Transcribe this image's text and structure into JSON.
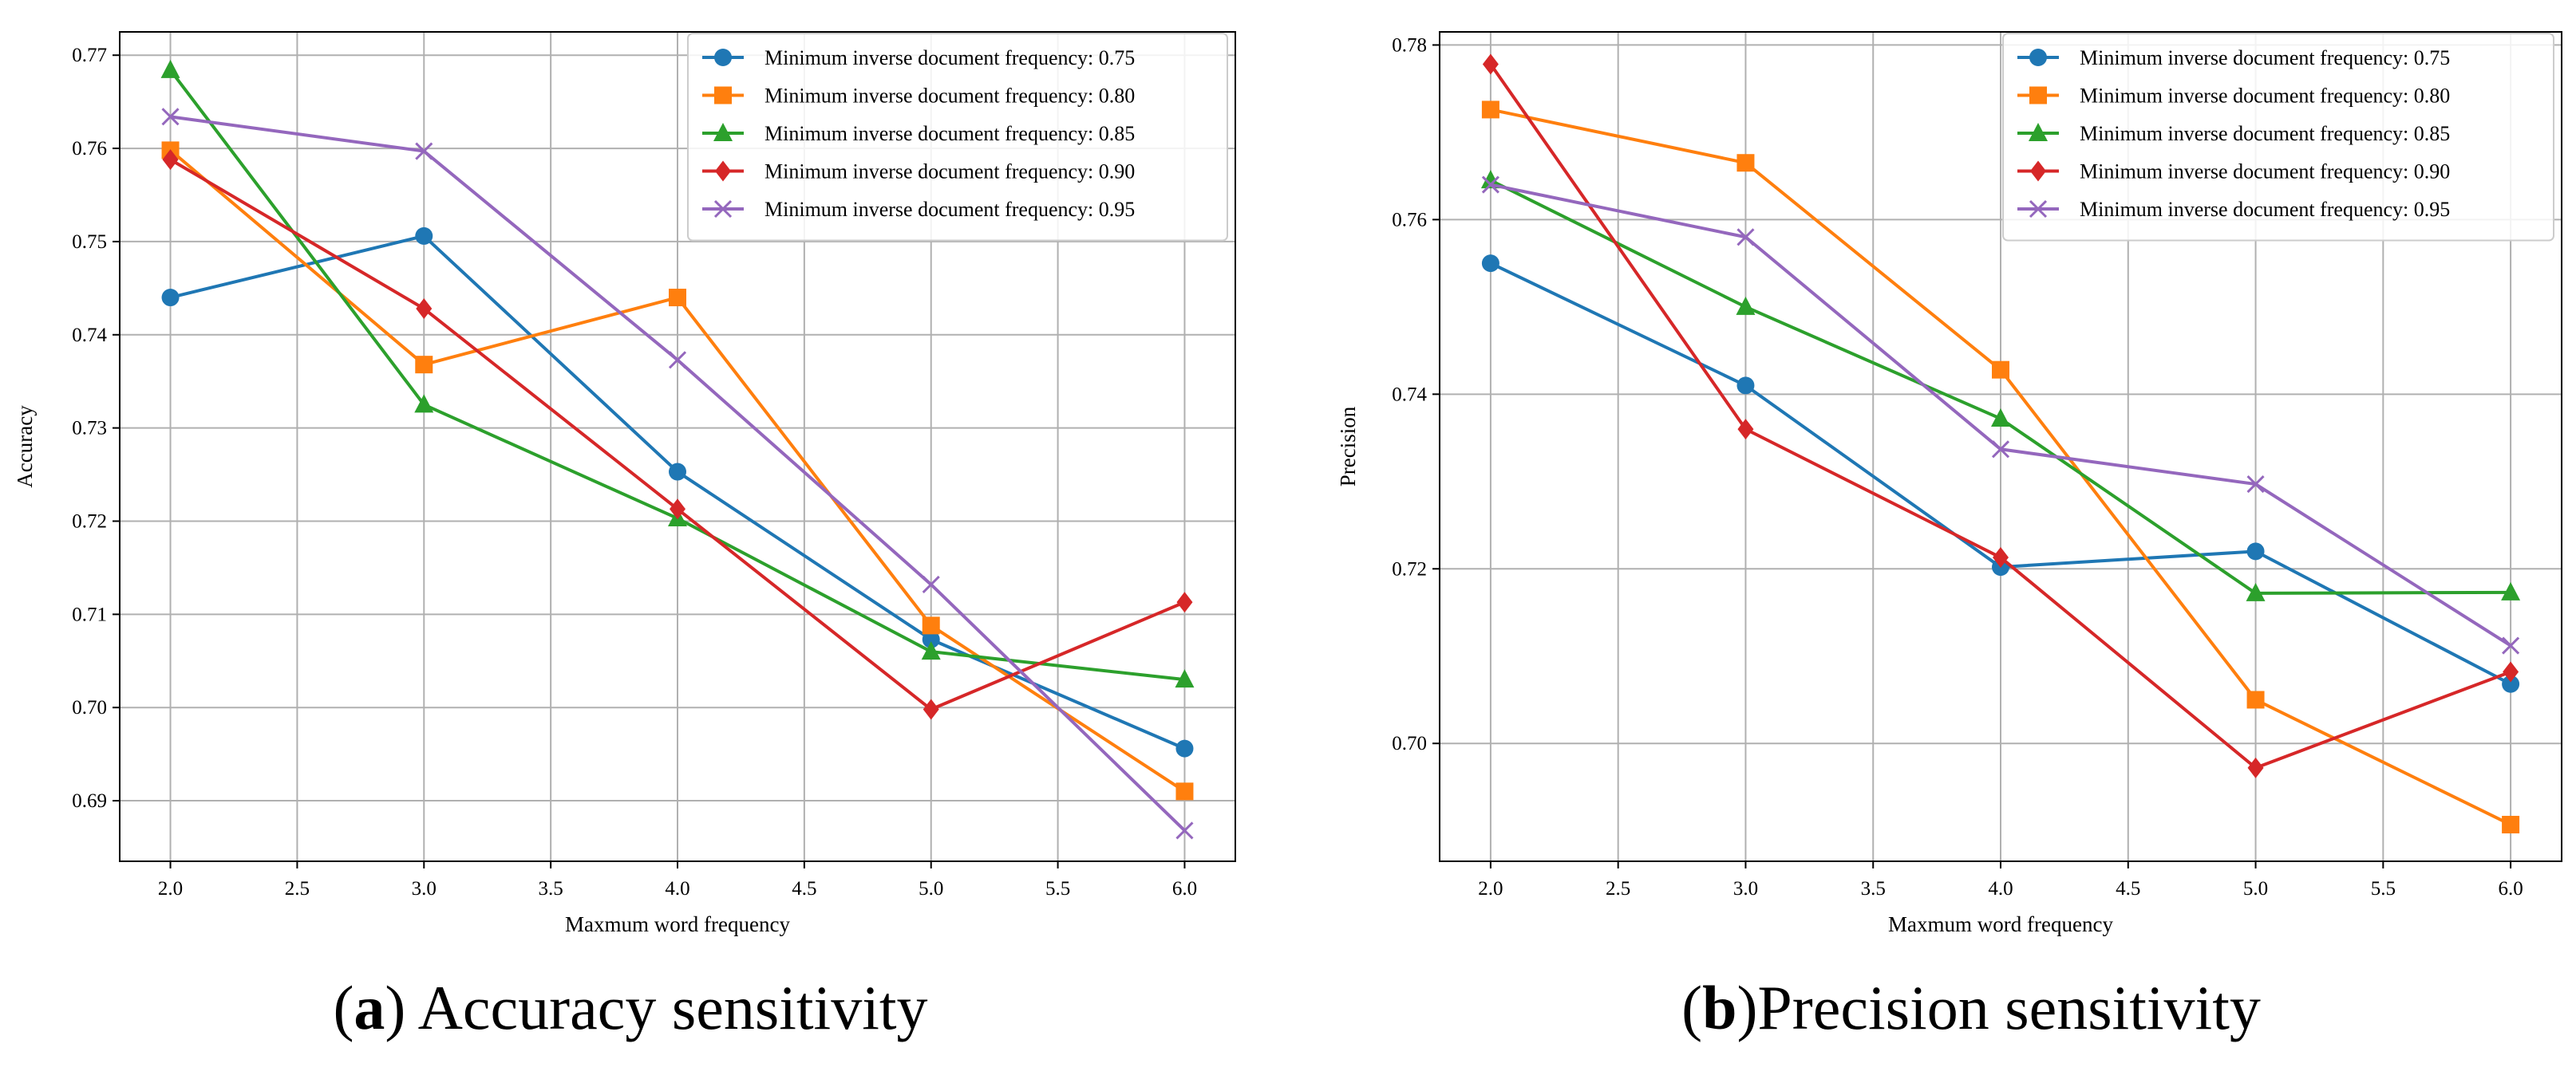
{
  "chart_data": [
    {
      "type": "line",
      "panel_label": "a",
      "title": "Accuracy sensitivity",
      "xlabel": "Maxmum word frequency",
      "ylabel": "Accuracy",
      "x": [
        2.0,
        3.0,
        4.0,
        5.0,
        6.0
      ],
      "xlim": [
        1.8,
        6.2
      ],
      "ylim": [
        0.6835,
        0.7725
      ],
      "xticks": [
        "2.0",
        "2.5",
        "3.0",
        "3.5",
        "4.0",
        "4.5",
        "5.0",
        "5.5",
        "6.0"
      ],
      "yticks": [
        "0.69",
        "0.70",
        "0.71",
        "0.72",
        "0.73",
        "0.74",
        "0.75",
        "0.76",
        "0.77"
      ],
      "grid": true,
      "legend_position": "top-right",
      "series": [
        {
          "name": "Minimum inverse document frequency: 0.75",
          "marker": "circle",
          "color": "#1f77b4",
          "values": [
            0.744,
            0.7506,
            0.7253,
            0.7073,
            0.6956
          ]
        },
        {
          "name": "Minimum inverse document frequency: 0.80",
          "marker": "square",
          "color": "#ff7f0e",
          "values": [
            0.7598,
            0.7368,
            0.744,
            0.7088,
            0.691
          ]
        },
        {
          "name": "Minimum inverse document frequency: 0.85",
          "marker": "triangle",
          "color": "#2ca02c",
          "values": [
            0.7684,
            0.7325,
            0.7203,
            0.706,
            0.703
          ]
        },
        {
          "name": "Minimum inverse document frequency: 0.90",
          "marker": "diamond",
          "color": "#d62728",
          "values": [
            0.7588,
            0.7428,
            0.7213,
            0.6998,
            0.7113
          ]
        },
        {
          "name": "Minimum inverse document frequency: 0.95",
          "marker": "x",
          "color": "#9467bd",
          "values": [
            0.7634,
            0.7597,
            0.7373,
            0.7132,
            0.6868
          ]
        }
      ]
    },
    {
      "type": "line",
      "panel_label": "b",
      "title": "Precision sensitivity",
      "xlabel": "Maxmum word frequency",
      "ylabel": "Precision",
      "x": [
        2.0,
        3.0,
        4.0,
        5.0,
        6.0
      ],
      "xlim": [
        1.8,
        6.2
      ],
      "ylim": [
        0.6865,
        0.7815
      ],
      "xticks": [
        "2.0",
        "2.5",
        "3.0",
        "3.5",
        "4.0",
        "4.5",
        "5.0",
        "5.5",
        "6.0"
      ],
      "yticks": [
        "0.700",
        "0.720",
        "0.740",
        "0.760",
        "0.780"
      ],
      "ytick_labels": [
        "0.70",
        "0.72",
        "0.74",
        "0.76",
        "0.78"
      ],
      "grid": true,
      "legend_position": "top-right",
      "series": [
        {
          "name": "Minimum inverse document frequency: 0.75",
          "marker": "circle",
          "color": "#1f77b4",
          "values": [
            0.755,
            0.741,
            0.7202,
            0.722,
            0.7068
          ]
        },
        {
          "name": "Minimum inverse document frequency: 0.80",
          "marker": "square",
          "color": "#ff7f0e",
          "values": [
            0.7726,
            0.7665,
            0.7428,
            0.705,
            0.6907
          ]
        },
        {
          "name": "Minimum inverse document frequency: 0.85",
          "marker": "triangle",
          "color": "#2ca02c",
          "values": [
            0.7645,
            0.75,
            0.7372,
            0.7172,
            0.7173
          ]
        },
        {
          "name": "Minimum inverse document frequency: 0.90",
          "marker": "diamond",
          "color": "#d62728",
          "values": [
            0.7778,
            0.736,
            0.7213,
            0.6972,
            0.7082
          ]
        },
        {
          "name": "Minimum inverse document frequency: 0.95",
          "marker": "x",
          "color": "#9467bd",
          "values": [
            0.764,
            0.758,
            0.7337,
            0.7297,
            0.7112
          ]
        }
      ]
    }
  ]
}
